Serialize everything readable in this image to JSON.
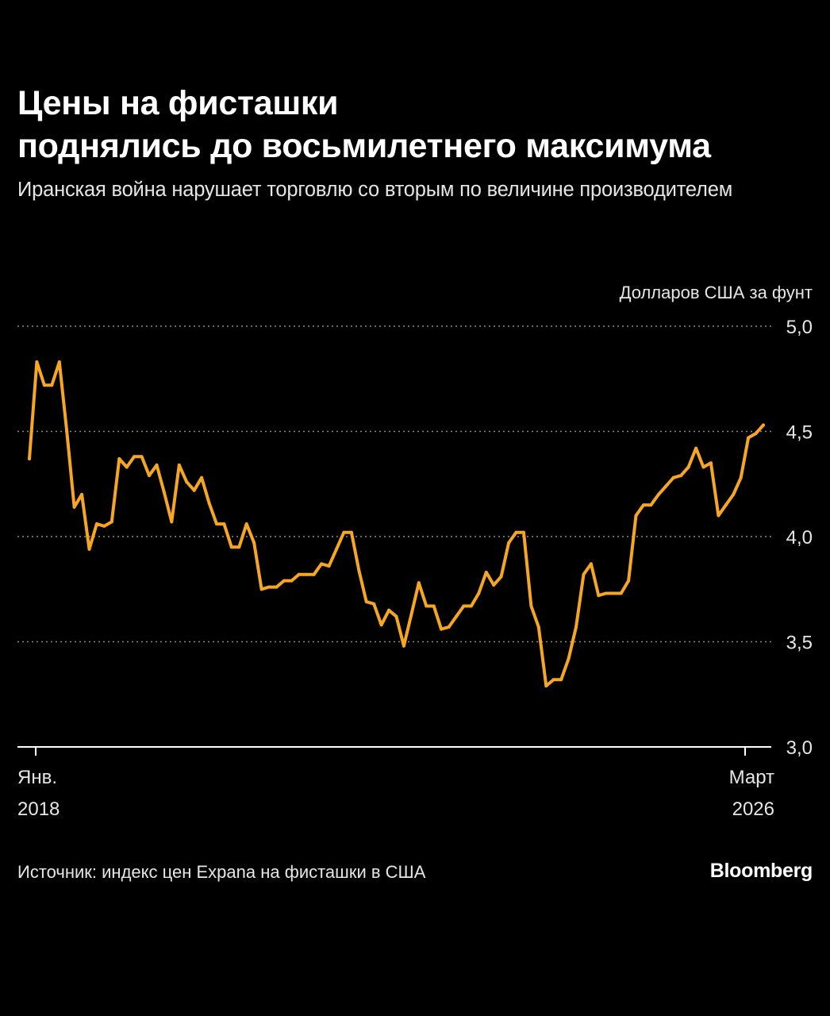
{
  "title_lines": [
    "Цены на фисташки",
    "поднялись до восьмилетнего максимума"
  ],
  "subtitle": "Иранская война нарушает торговлю со вторым по величине производителем",
  "source": "Источник: индекс цен Expana на фисташки в США",
  "brand": "Bloomberg",
  "colors": {
    "background": "#000000",
    "line": "#f5a623",
    "grid": "#8a8a8a",
    "text": "#e6e6e6"
  },
  "chart_data": {
    "type": "line",
    "title": "Цены на фисташки поднялись до восьмилетнего максимума",
    "subtitle": "Иранская война нарушает торговлю со вторым по величине производителем",
    "ylabel": "Долларов США за фунт",
    "ylim": [
      3.0,
      5.0
    ],
    "yticks": [
      3.0,
      3.5,
      4.0,
      4.5,
      5.0
    ],
    "ytick_labels": [
      "3,0",
      "3,5",
      "4,0",
      "4,5",
      "5,0"
    ],
    "x_start": "2018-01",
    "x_end": "2026-03",
    "xtick_labels": [
      {
        "line1": "Янв.",
        "line2": "2018"
      },
      {
        "line1": "Март",
        "line2": "2026"
      }
    ],
    "grid": true,
    "series": [
      {
        "values": [
          4.37,
          4.83,
          4.72,
          4.72,
          4.83,
          4.5,
          4.14,
          4.2,
          3.94,
          4.06,
          4.05,
          4.07,
          4.37,
          4.33,
          4.38,
          4.38,
          4.29,
          4.34,
          4.21,
          4.07,
          4.34,
          4.26,
          4.22,
          4.28,
          4.16,
          4.06,
          4.06,
          3.95,
          3.95,
          4.06,
          3.97,
          3.75,
          3.76,
          3.76,
          3.79,
          3.79,
          3.82,
          3.82,
          3.82,
          3.87,
          3.86,
          3.94,
          4.02,
          4.02,
          3.84,
          3.69,
          3.68,
          3.58,
          3.65,
          3.62,
          3.48,
          3.63,
          3.78,
          3.67,
          3.67,
          3.56,
          3.57,
          3.62,
          3.67,
          3.67,
          3.73,
          3.83,
          3.77,
          3.81,
          3.97,
          4.02,
          4.02,
          3.67,
          3.57,
          3.29,
          3.32,
          3.32,
          3.42,
          3.57,
          3.82,
          3.87,
          3.72,
          3.73,
          3.73,
          3.73,
          3.79,
          4.1,
          4.15,
          4.15,
          4.2,
          4.24,
          4.28,
          4.29,
          4.33,
          4.42,
          4.33,
          4.35,
          4.1,
          4.15,
          4.2,
          4.28,
          4.47,
          4.49,
          4.53
        ]
      }
    ]
  }
}
